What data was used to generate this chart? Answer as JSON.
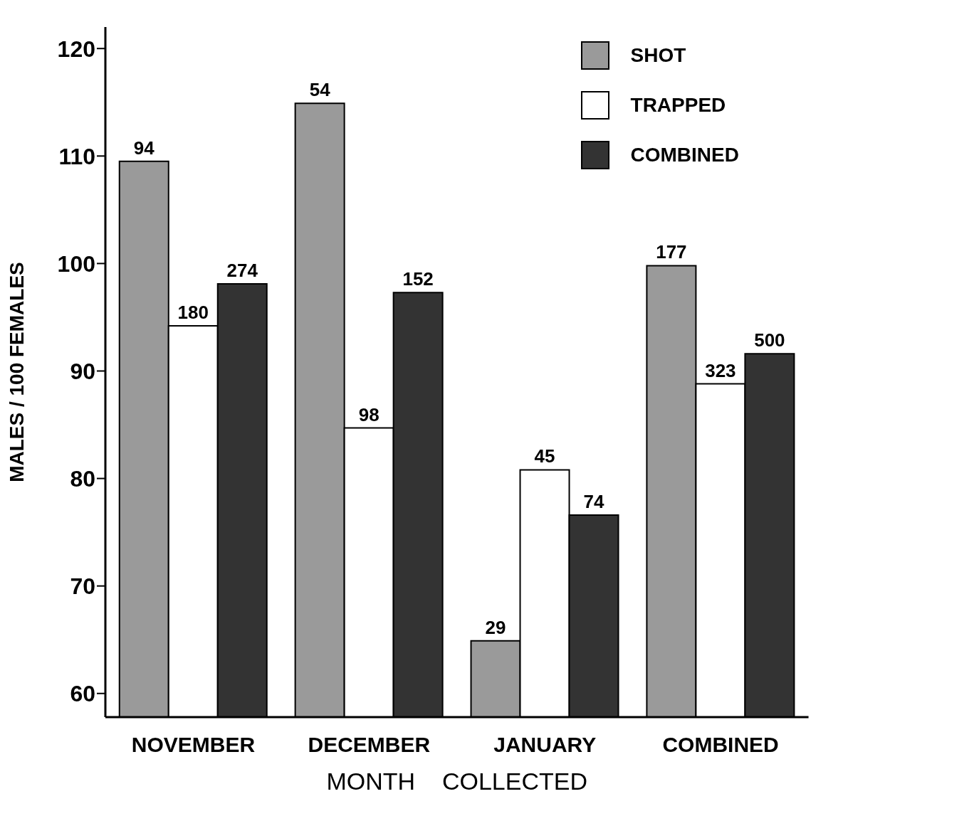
{
  "chart_data": {
    "type": "bar",
    "xlabel": "MONTH    COLLECTED",
    "ylabel": "MALES / 100 FEMALES",
    "categories": [
      "NOVEMBER",
      "DECEMBER",
      "JANUARY",
      "COMBINED"
    ],
    "series": [
      {
        "name": "SHOT",
        "color": "#9a9a9a",
        "values": [
          109.5,
          114.9,
          64.9,
          99.8
        ]
      },
      {
        "name": "TRAPPED",
        "color": "#ffffff",
        "values": [
          94.2,
          84.7,
          80.8,
          88.8
        ]
      },
      {
        "name": "COMBINED",
        "color": "#333333",
        "values": [
          98.1,
          97.3,
          76.6,
          91.6
        ]
      }
    ],
    "annotations": [
      "94",
      "180",
      "274",
      "54",
      "98",
      "152",
      "29",
      "45",
      "74",
      "177",
      "323",
      "500"
    ],
    "ylim": [
      57.8,
      122
    ],
    "yticks": [
      60,
      70,
      80,
      90,
      100,
      110,
      120
    ],
    "grid": false,
    "legend": "top right"
  }
}
